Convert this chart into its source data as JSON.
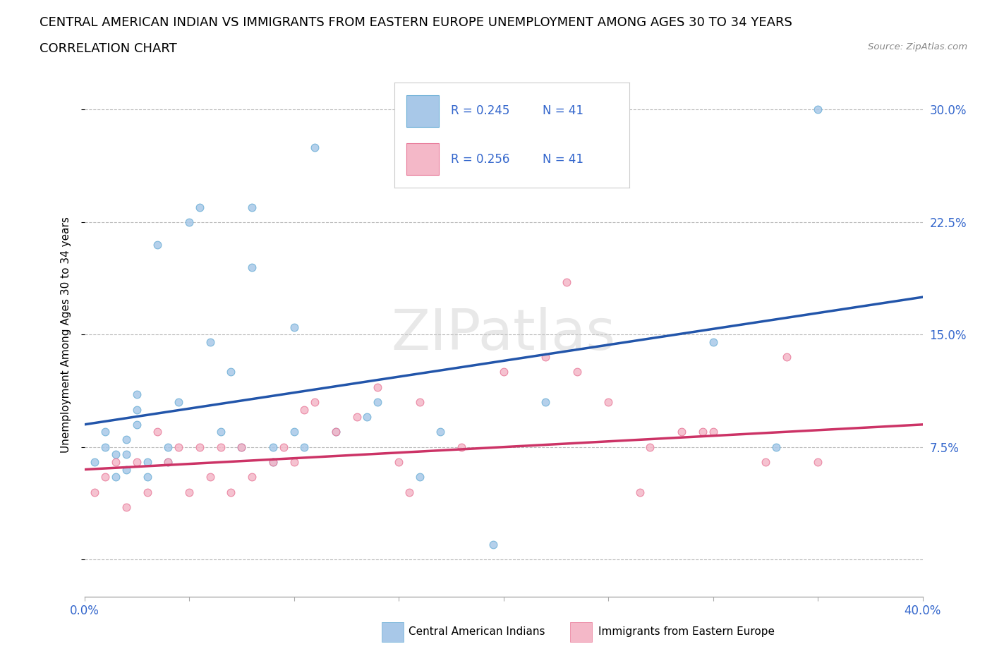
{
  "title_line1": "CENTRAL AMERICAN INDIAN VS IMMIGRANTS FROM EASTERN EUROPE UNEMPLOYMENT AMONG AGES 30 TO 34 YEARS",
  "title_line2": "CORRELATION CHART",
  "source_text": "Source: ZipAtlas.com",
  "ylabel": "Unemployment Among Ages 30 to 34 years",
  "xlim": [
    0.0,
    0.4
  ],
  "ylim": [
    -0.025,
    0.325
  ],
  "watermark": "ZIPatlas",
  "blue_color": "#a8c8e8",
  "blue_edge": "#6baed6",
  "pink_color": "#f4b8c8",
  "pink_edge": "#e87898",
  "trend_blue": "#2255aa",
  "trend_pink": "#cc3366",
  "blue_scatter_x": [
    0.005,
    0.01,
    0.01,
    0.015,
    0.015,
    0.02,
    0.02,
    0.02,
    0.025,
    0.025,
    0.025,
    0.03,
    0.03,
    0.035,
    0.04,
    0.04,
    0.045,
    0.05,
    0.055,
    0.06,
    0.065,
    0.07,
    0.075,
    0.08,
    0.08,
    0.09,
    0.09,
    0.1,
    0.1,
    0.105,
    0.11,
    0.12,
    0.135,
    0.14,
    0.16,
    0.17,
    0.22,
    0.3,
    0.33,
    0.35,
    0.195
  ],
  "blue_scatter_y": [
    0.065,
    0.075,
    0.085,
    0.055,
    0.07,
    0.06,
    0.07,
    0.08,
    0.09,
    0.1,
    0.11,
    0.055,
    0.065,
    0.21,
    0.065,
    0.075,
    0.105,
    0.225,
    0.235,
    0.145,
    0.085,
    0.125,
    0.075,
    0.235,
    0.195,
    0.065,
    0.075,
    0.155,
    0.085,
    0.075,
    0.275,
    0.085,
    0.095,
    0.105,
    0.055,
    0.085,
    0.105,
    0.145,
    0.075,
    0.3,
    0.01
  ],
  "pink_scatter_x": [
    0.005,
    0.01,
    0.015,
    0.02,
    0.025,
    0.03,
    0.035,
    0.04,
    0.045,
    0.05,
    0.055,
    0.06,
    0.065,
    0.07,
    0.075,
    0.08,
    0.09,
    0.095,
    0.1,
    0.105,
    0.11,
    0.12,
    0.13,
    0.14,
    0.15,
    0.155,
    0.16,
    0.18,
    0.2,
    0.22,
    0.235,
    0.25,
    0.265,
    0.27,
    0.285,
    0.295,
    0.3,
    0.325,
    0.335,
    0.35,
    0.23
  ],
  "pink_scatter_y": [
    0.045,
    0.055,
    0.065,
    0.035,
    0.065,
    0.045,
    0.085,
    0.065,
    0.075,
    0.045,
    0.075,
    0.055,
    0.075,
    0.045,
    0.075,
    0.055,
    0.065,
    0.075,
    0.065,
    0.1,
    0.105,
    0.085,
    0.095,
    0.115,
    0.065,
    0.045,
    0.105,
    0.075,
    0.125,
    0.135,
    0.125,
    0.105,
    0.045,
    0.075,
    0.085,
    0.085,
    0.085,
    0.065,
    0.135,
    0.065,
    0.185
  ],
  "blue_trend_x": [
    0.0,
    0.4
  ],
  "blue_trend_y": [
    0.09,
    0.175
  ],
  "pink_trend_x": [
    0.0,
    0.4
  ],
  "pink_trend_y": [
    0.06,
    0.09
  ],
  "legend_label1": "Central American Indians",
  "legend_label2": "Immigrants from Eastern Europe",
  "grid_color": "#bbbbbb",
  "background_color": "#ffffff",
  "title_fontsize": 13,
  "label_fontsize": 11,
  "tick_fontsize": 12,
  "dot_size": 60
}
